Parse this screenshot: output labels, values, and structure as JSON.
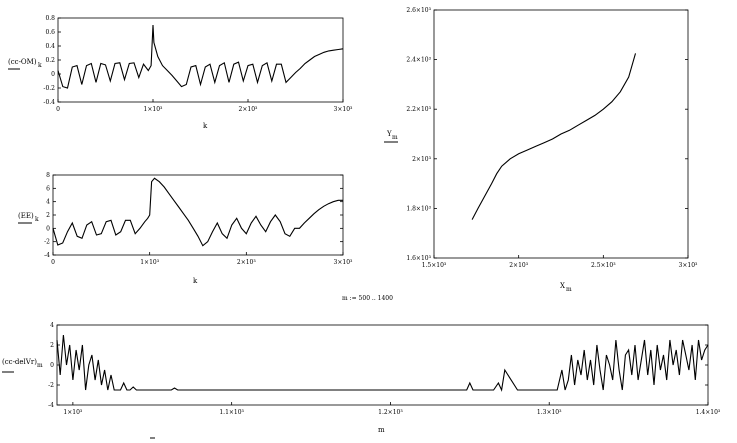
{
  "range_note": "m := 500 .. 1400",
  "chart_data": [
    {
      "id": "p1",
      "type": "line",
      "ylabel": "(cc-OM)",
      "ylabel_sub": "k",
      "xlabel": "k",
      "xlim": [
        0,
        3000
      ],
      "ylim": [
        -0.4,
        0.8
      ],
      "x_ticks": [
        0,
        1000,
        2000,
        3000
      ],
      "x_tick_labels": [
        "0",
        "1×10³",
        "2×10³",
        "3×10³"
      ],
      "y_ticks": [
        -0.4,
        -0.2,
        0,
        0.2,
        0.4,
        0.6,
        0.8
      ],
      "y_tick_labels": [
        "-0.4",
        "-0.2",
        "0",
        "0.2",
        "0.4",
        "0.6",
        "0.8"
      ],
      "grid": false,
      "x": [
        0,
        50,
        100,
        150,
        200,
        250,
        300,
        350,
        400,
        450,
        500,
        550,
        600,
        650,
        700,
        750,
        800,
        850,
        900,
        950,
        980,
        1000,
        1010,
        1050,
        1100,
        1150,
        1200,
        1250,
        1300,
        1350,
        1400,
        1450,
        1500,
        1550,
        1600,
        1650,
        1700,
        1750,
        1800,
        1850,
        1900,
        1950,
        2000,
        2050,
        2100,
        2150,
        2200,
        2250,
        2300,
        2350,
        2400,
        2450,
        2500,
        2550,
        2600,
        2650,
        2700,
        2750,
        2800,
        2850,
        2900,
        2950,
        3000
      ],
      "y": [
        0.05,
        -0.18,
        -0.2,
        0.1,
        0.12,
        -0.15,
        0.12,
        0.15,
        -0.12,
        0.15,
        0.13,
        -0.1,
        0.15,
        0.16,
        -0.08,
        0.15,
        0.16,
        -0.05,
        0.14,
        0.05,
        0.12,
        0.7,
        0.45,
        0.25,
        0.12,
        0.05,
        -0.02,
        -0.1,
        -0.18,
        -0.15,
        0.1,
        0.12,
        -0.15,
        0.1,
        0.14,
        -0.12,
        0.12,
        0.16,
        -0.12,
        0.14,
        0.17,
        -0.1,
        0.12,
        0.14,
        -0.12,
        0.12,
        0.16,
        -0.1,
        0.14,
        0.14,
        -0.12,
        -0.05,
        0.02,
        0.08,
        0.15,
        0.2,
        0.25,
        0.28,
        0.31,
        0.33,
        0.34,
        0.35,
        0.36
      ]
    },
    {
      "id": "p2",
      "type": "line",
      "ylabel": "(EE)",
      "ylabel_sub": "k",
      "xlabel": "k",
      "xlim": [
        0,
        3000
      ],
      "ylim": [
        -4,
        8
      ],
      "x_ticks": [
        0,
        1000,
        2000,
        3000
      ],
      "x_tick_labels": [
        "0",
        "1×10³",
        "2×10³",
        "3×10³"
      ],
      "y_ticks": [
        -4,
        -2,
        0,
        2,
        4,
        6,
        8
      ],
      "y_tick_labels": [
        "-4",
        "-2",
        "0",
        "2",
        "4",
        "6",
        "8"
      ],
      "grid": false,
      "x": [
        0,
        50,
        100,
        150,
        200,
        250,
        300,
        350,
        400,
        450,
        500,
        550,
        600,
        650,
        700,
        750,
        800,
        850,
        900,
        950,
        980,
        1000,
        1020,
        1050,
        1100,
        1150,
        1200,
        1250,
        1300,
        1350,
        1400,
        1450,
        1500,
        1550,
        1600,
        1650,
        1700,
        1750,
        1800,
        1850,
        1900,
        1950,
        2000,
        2050,
        2100,
        2150,
        2200,
        2250,
        2300,
        2350,
        2400,
        2450,
        2500,
        2550,
        2600,
        2650,
        2700,
        2750,
        2800,
        2850,
        2900,
        2950,
        3000
      ],
      "y": [
        0,
        -2.5,
        -2.2,
        -0.5,
        0.8,
        -1.2,
        -1.5,
        0.5,
        1,
        -1,
        -0.8,
        1,
        1.2,
        -1,
        -0.5,
        1.2,
        1.2,
        -0.8,
        0,
        1,
        1.5,
        2,
        7,
        7.5,
        7,
        6.2,
        5.2,
        4.2,
        3.2,
        2.2,
        1.2,
        0,
        -1.2,
        -2.6,
        -2,
        -0.5,
        0.8,
        -0.8,
        -1.5,
        0.5,
        1.5,
        0,
        -0.8,
        0.8,
        1.8,
        0.5,
        -0.5,
        1,
        2,
        1,
        -0.8,
        -1.2,
        0,
        0,
        0.8,
        1.5,
        2.2,
        2.8,
        3.3,
        3.7,
        4,
        4.2,
        4.2
      ]
    },
    {
      "id": "p3",
      "type": "line",
      "ylabel": "Y",
      "ylabel_sub": "m",
      "xlabel": "X",
      "xlabel_sub": "m",
      "xlim": [
        1500,
        3000
      ],
      "ylim": [
        1600,
        2600
      ],
      "x_ticks": [
        1500,
        2000,
        2500,
        3000
      ],
      "x_tick_labels": [
        "1.5×10³",
        "2×10³",
        "2.5×10³",
        "3×10³"
      ],
      "y_ticks": [
        1600,
        1800,
        2000,
        2200,
        2400,
        2600
      ],
      "y_tick_labels": [
        "1.6×10³",
        "1.8×10³",
        "2×10³",
        "2.2×10³",
        "2.4×10³",
        "2.6×10³"
      ],
      "grid": false,
      "x": [
        1725,
        1760,
        1800,
        1840,
        1870,
        1900,
        1950,
        2000,
        2050,
        2100,
        2150,
        2200,
        2250,
        2300,
        2350,
        2400,
        2450,
        2500,
        2550,
        2600,
        2650,
        2690
      ],
      "y": [
        1755,
        1800,
        1850,
        1900,
        1940,
        1970,
        2000,
        2020,
        2035,
        2050,
        2065,
        2080,
        2100,
        2115,
        2135,
        2155,
        2175,
        2200,
        2230,
        2270,
        2330,
        2425
      ]
    },
    {
      "id": "p4",
      "type": "line",
      "ylabel": "(cc-delVr)",
      "ylabel_sub": "m",
      "xlabel": "m",
      "xlim": [
        990,
        1400
      ],
      "ylim": [
        -4,
        4
      ],
      "x_ticks": [
        1000,
        1100,
        1200,
        1300,
        1400
      ],
      "x_tick_labels": [
        "1×10³",
        "1.1×10³",
        "1.2×10³",
        "1.3×10³",
        "1.4×10³"
      ],
      "y_ticks": [
        -4,
        -2,
        0,
        2,
        4
      ],
      "y_tick_labels": [
        "-4",
        "-2",
        "0",
        "2",
        "4"
      ],
      "grid": false,
      "x": [
        990,
        992,
        994,
        996,
        998,
        1000,
        1002,
        1004,
        1006,
        1008,
        1010,
        1012,
        1014,
        1016,
        1018,
        1020,
        1022,
        1024,
        1026,
        1028,
        1030,
        1032,
        1034,
        1036,
        1038,
        1040,
        1045,
        1050,
        1055,
        1060,
        1062,
        1064,
        1066,
        1070,
        1080,
        1100,
        1150,
        1200,
        1230,
        1240,
        1248,
        1250,
        1252,
        1254,
        1260,
        1265,
        1268,
        1270,
        1272,
        1280,
        1290,
        1300,
        1305,
        1308,
        1310,
        1312,
        1314,
        1316,
        1318,
        1320,
        1322,
        1324,
        1326,
        1328,
        1330,
        1332,
        1334,
        1336,
        1338,
        1340,
        1342,
        1344,
        1346,
        1348,
        1350,
        1352,
        1354,
        1356,
        1358,
        1360,
        1362,
        1364,
        1366,
        1368,
        1370,
        1372,
        1374,
        1376,
        1378,
        1380,
        1382,
        1384,
        1386,
        1388,
        1390,
        1392,
        1394,
        1396,
        1398,
        1400
      ],
      "y": [
        2.5,
        -1,
        3,
        0,
        2,
        -1.5,
        1.5,
        -0.5,
        2,
        -2.5,
        0,
        1,
        -1.5,
        0.5,
        -2,
        -0.5,
        -2.5,
        -1,
        -2.5,
        -2.5,
        -2.5,
        -1.8,
        -2.5,
        -2.5,
        -2.2,
        -2.5,
        -2.5,
        -2.5,
        -2.5,
        -2.5,
        -2.5,
        -2.3,
        -2.5,
        -2.5,
        -2.5,
        -2.5,
        -2.5,
        -2.5,
        -2.5,
        -2.5,
        -2.5,
        -1.8,
        -2.5,
        -2.5,
        -2.5,
        -2.5,
        -1.8,
        -2.5,
        -0.5,
        -2.5,
        -2.5,
        -2.5,
        -2.5,
        -0.5,
        -2.5,
        -1.5,
        1,
        -2,
        0.5,
        -1,
        1.5,
        -1.5,
        0.5,
        -2,
        2,
        -0.5,
        -2.5,
        1,
        0,
        -1.5,
        2.5,
        -0.5,
        -2.5,
        1,
        1.5,
        -1,
        2,
        -1.5,
        0.5,
        2.5,
        -1,
        1.5,
        -2,
        2,
        -0.5,
        1,
        -1.5,
        2.5,
        0,
        1.5,
        -1,
        2.5,
        1,
        -0.5,
        2,
        -1.5,
        2.5,
        0.5,
        1.5,
        2
      ]
    }
  ]
}
